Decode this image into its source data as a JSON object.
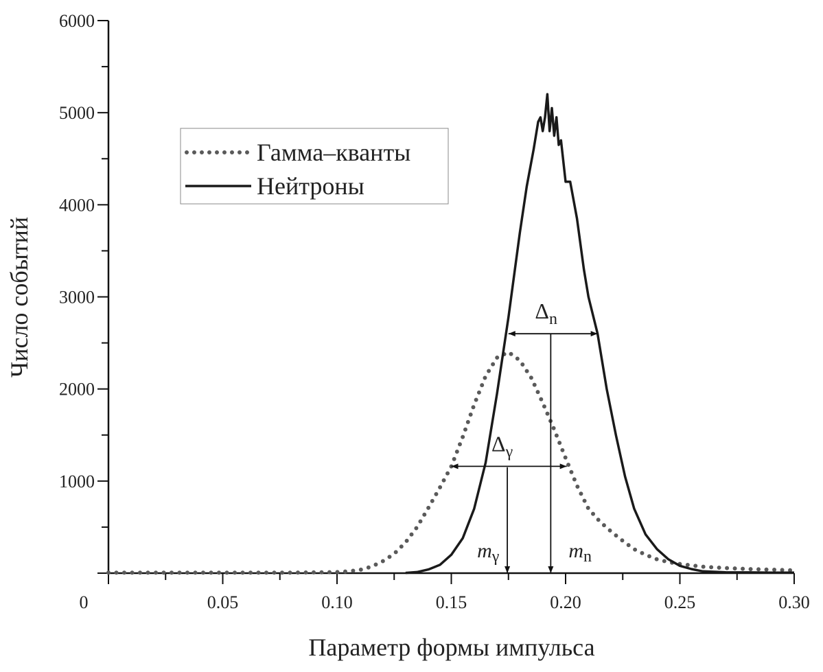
{
  "chart_data": {
    "type": "line",
    "title": "",
    "xlabel": "Параметр формы импульса",
    "ylabel": "Число событий",
    "xlim": [
      0,
      0.3
    ],
    "ylim": [
      0,
      6000
    ],
    "x_ticks": [
      0.05,
      0.1,
      0.15,
      0.2,
      0.25,
      0.3
    ],
    "x_tick_labels": [
      "0.05",
      "0.10",
      "0.15",
      "0.20",
      "0.25",
      "0.30"
    ],
    "y_ticks": [
      1000,
      2000,
      3000,
      4000,
      5000,
      6000
    ],
    "y_tick_labels": [
      "1000",
      "2000",
      "3000",
      "4000",
      "5000",
      "6000"
    ],
    "origin_label": "0",
    "x_minor_step": 0.025,
    "y_minor_step": 500,
    "grid": false,
    "legend_position": "upper-left",
    "series": [
      {
        "name": "Гамма–кванты",
        "style": "dotted",
        "color": "#5a5a5a",
        "x": [
          0.0,
          0.01,
          0.02,
          0.03,
          0.04,
          0.05,
          0.06,
          0.07,
          0.08,
          0.09,
          0.1,
          0.105,
          0.11,
          0.115,
          0.12,
          0.125,
          0.13,
          0.135,
          0.14,
          0.145,
          0.15,
          0.155,
          0.16,
          0.165,
          0.17,
          0.175,
          0.18,
          0.185,
          0.19,
          0.195,
          0.2,
          0.205,
          0.21,
          0.215,
          0.22,
          0.225,
          0.23,
          0.235,
          0.24,
          0.245,
          0.25,
          0.26,
          0.27,
          0.28,
          0.29,
          0.3
        ],
        "y": [
          5,
          5,
          5,
          5,
          5,
          5,
          5,
          5,
          6,
          8,
          12,
          20,
          35,
          70,
          130,
          210,
          335,
          500,
          710,
          930,
          1160,
          1480,
          1830,
          2140,
          2340,
          2400,
          2310,
          2120,
          1850,
          1560,
          1250,
          950,
          700,
          560,
          450,
          350,
          260,
          200,
          150,
          120,
          100,
          70,
          55,
          45,
          38,
          30
        ]
      },
      {
        "name": "Нейтроны",
        "style": "solid",
        "color": "#1a1a1a",
        "x": [
          0.13,
          0.135,
          0.14,
          0.145,
          0.15,
          0.155,
          0.16,
          0.165,
          0.17,
          0.175,
          0.18,
          0.183,
          0.186,
          0.188,
          0.189,
          0.19,
          0.191,
          0.192,
          0.193,
          0.194,
          0.195,
          0.196,
          0.197,
          0.198,
          0.2,
          0.202,
          0.205,
          0.208,
          0.21,
          0.214,
          0.218,
          0.222,
          0.226,
          0.23,
          0.235,
          0.24,
          0.245,
          0.25,
          0.255,
          0.26,
          0.265,
          0.27,
          0.28,
          0.29,
          0.3
        ],
        "y": [
          3,
          12,
          40,
          90,
          200,
          380,
          700,
          1200,
          1950,
          2780,
          3700,
          4200,
          4600,
          4900,
          4950,
          4800,
          4950,
          5200,
          4800,
          5050,
          4750,
          4950,
          4650,
          4700,
          4250,
          4250,
          3850,
          3300,
          3000,
          2600,
          2000,
          1500,
          1050,
          700,
          420,
          260,
          150,
          80,
          45,
          20,
          15,
          10,
          8,
          6,
          5
        ]
      }
    ],
    "annotations": [
      {
        "label": "Δ",
        "subscript": "n",
        "type": "double-arrow",
        "from_x": 0.175,
        "to_x": 0.214,
        "y": 2600
      },
      {
        "label": "Δ",
        "subscript": "γ",
        "type": "double-arrow",
        "from_x": 0.15,
        "to_x": 0.2005,
        "y": 1160
      },
      {
        "label": "m",
        "subscript": "n",
        "type": "down-arrow",
        "x": 0.1935,
        "from_y": 2600,
        "to_y": 0
      },
      {
        "label": "m",
        "subscript": "γ",
        "type": "down-arrow",
        "x": 0.1745,
        "from_y": 1150,
        "to_y": 0
      }
    ]
  }
}
